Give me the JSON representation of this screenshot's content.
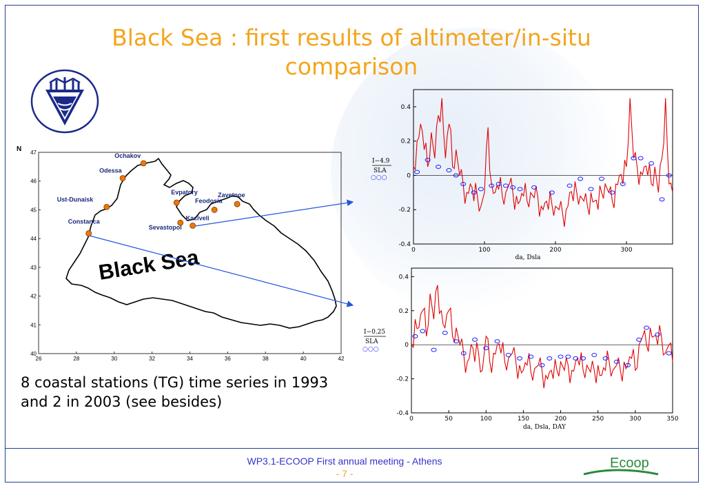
{
  "slide": {
    "title_line1": "Black Sea : first results of altimeter/in-situ",
    "title_line2": "comparison",
    "caption_line1": "8 coastal stations (TG) time series in 1993",
    "caption_line2": "and 2 in 2003 (see besides)",
    "footer_text": "WP3.1-ECOOP First annual meeting  - Athens",
    "page_number": "- 7 -",
    "ecoop_logo": "Ecoop"
  },
  "colors": {
    "title": "#f4a51c",
    "footer": "#3333cc",
    "series": "#e00000",
    "markers": "#1a1aff",
    "station": "#f07800",
    "arrow": "#2255dd"
  },
  "map": {
    "north_label": "N",
    "sea_label": "Black Sea",
    "x_ticks": [
      "26",
      "28",
      "30",
      "32",
      "34",
      "36",
      "38",
      "40",
      "42"
    ],
    "y_ticks": [
      "40",
      "41",
      "42",
      "43",
      "44",
      "45",
      "46",
      "47"
    ],
    "stations": [
      {
        "name": "Ochakov",
        "lon": 31.55,
        "lat": 46.62
      },
      {
        "name": "Odessa",
        "lon": 30.45,
        "lat": 46.1
      },
      {
        "name": "Ust-Dunaisk",
        "lon": 29.6,
        "lat": 45.1
      },
      {
        "name": "Constanca",
        "lon": 28.65,
        "lat": 44.18
      },
      {
        "name": "Evpatory",
        "lon": 33.3,
        "lat": 45.25
      },
      {
        "name": "Sevastopol",
        "lon": 33.5,
        "lat": 44.55
      },
      {
        "name": "Kaciveli",
        "lon": 34.15,
        "lat": 44.45
      },
      {
        "name": "Feodosia",
        "lon": 35.3,
        "lat": 45.0
      },
      {
        "name": "Zavetnoe",
        "lon": 36.5,
        "lat": 45.2
      }
    ]
  },
  "chart_data": [
    {
      "type": "line",
      "ylabel": "I−4.9",
      "ylabel2": "SLA",
      "ylabel3": "○○○",
      "xlabel": "da, Dsla",
      "xlim": [
        0,
        365
      ],
      "ylim": [
        -0.4,
        0.5
      ],
      "x_ticks": [
        0,
        100,
        200,
        300
      ],
      "y_ticks": [
        -0.4,
        -0.2,
        0,
        0.2,
        0.4
      ],
      "series": [
        {
          "style": "line",
          "x": [
            0,
            5,
            10,
            15,
            20,
            25,
            30,
            35,
            40,
            45,
            50,
            55,
            60,
            65,
            70,
            75,
            80,
            85,
            90,
            95,
            100,
            105,
            110,
            115,
            120,
            125,
            130,
            135,
            140,
            145,
            150,
            155,
            160,
            165,
            170,
            175,
            180,
            185,
            190,
            195,
            200,
            205,
            210,
            215,
            220,
            225,
            230,
            235,
            240,
            245,
            250,
            255,
            260,
            265,
            270,
            275,
            280,
            285,
            290,
            295,
            300,
            305,
            310,
            315,
            320,
            325,
            330,
            335,
            340,
            345,
            350,
            355,
            360,
            365
          ],
          "y": [
            0.05,
            0.2,
            0.3,
            0.15,
            0.05,
            0.25,
            0.1,
            0.35,
            0.45,
            0.1,
            0.3,
            0.05,
            0.15,
            0.0,
            -0.05,
            -0.1,
            -0.05,
            -0.15,
            -0.12,
            -0.18,
            -0.1,
            0.28,
            -0.05,
            -0.1,
            -0.08,
            -0.12,
            -0.1,
            -0.05,
            -0.1,
            -0.12,
            -0.15,
            -0.12,
            -0.15,
            -0.1,
            -0.13,
            -0.12,
            -0.18,
            -0.16,
            -0.2,
            -0.17,
            -0.18,
            -0.2,
            -0.22,
            -0.2,
            -0.1,
            -0.15,
            -0.1,
            -0.12,
            -0.15,
            -0.18,
            -0.1,
            -0.15,
            -0.2,
            -0.1,
            -0.05,
            -0.1,
            -0.15,
            -0.05,
            0.0,
            -0.05,
            0.05,
            0.45,
            0.1,
            0.05,
            0.02,
            0.05,
            0.0,
            -0.05,
            0.05,
            -0.1,
            0.1,
            0.45,
            -0.05,
            -0.1
          ]
        },
        {
          "style": "markers",
          "x": [
            5,
            20,
            35,
            50,
            60,
            70,
            85,
            95,
            110,
            120,
            130,
            140,
            150,
            170,
            195,
            220,
            235,
            250,
            265,
            280,
            295,
            310,
            320,
            335,
            350,
            360
          ],
          "y": [
            0.02,
            0.09,
            0.05,
            0.03,
            0.0,
            -0.05,
            -0.1,
            -0.08,
            -0.06,
            -0.05,
            -0.06,
            -0.07,
            -0.08,
            -0.07,
            -0.1,
            -0.06,
            -0.02,
            -0.08,
            -0.02,
            -0.1,
            -0.05,
            0.1,
            0.1,
            0.07,
            -0.14,
            0.0
          ]
        }
      ]
    },
    {
      "type": "line",
      "ylabel": "I−0.25",
      "ylabel2": "SLA",
      "ylabel3": "○○○",
      "xlabel": "da, Dsla, DAY",
      "xlim": [
        0,
        350
      ],
      "ylim": [
        -0.4,
        0.45
      ],
      "x_ticks": [
        0,
        50,
        100,
        150,
        200,
        250,
        300,
        350
      ],
      "y_ticks": [
        -0.4,
        -0.2,
        0,
        0.2,
        0.4
      ],
      "series": [
        {
          "style": "line",
          "x": [
            0,
            5,
            10,
            15,
            20,
            25,
            30,
            35,
            40,
            45,
            50,
            55,
            60,
            65,
            70,
            75,
            80,
            85,
            90,
            95,
            100,
            105,
            110,
            115,
            120,
            125,
            130,
            135,
            140,
            145,
            150,
            155,
            160,
            165,
            170,
            175,
            180,
            185,
            190,
            195,
            200,
            205,
            210,
            215,
            220,
            225,
            230,
            235,
            240,
            245,
            250,
            255,
            260,
            265,
            270,
            275,
            280,
            285,
            290,
            295,
            300,
            305,
            310,
            315,
            320,
            325,
            330,
            335,
            340,
            345,
            350
          ],
          "y": [
            0.0,
            0.15,
            0.1,
            0.2,
            0.05,
            0.3,
            0.15,
            0.35,
            0.2,
            0.1,
            0.2,
            0.05,
            0.1,
            0.0,
            -0.05,
            -0.1,
            0.0,
            -0.1,
            -0.05,
            -0.15,
            0.05,
            -0.1,
            -0.05,
            0.0,
            -0.05,
            -0.1,
            -0.08,
            -0.05,
            -0.1,
            -0.12,
            -0.15,
            -0.12,
            -0.16,
            -0.14,
            -0.12,
            -0.15,
            -0.18,
            -0.16,
            -0.2,
            -0.15,
            -0.1,
            -0.15,
            -0.12,
            -0.15,
            -0.1,
            -0.12,
            -0.15,
            -0.12,
            -0.16,
            -0.15,
            -0.12,
            -0.18,
            -0.15,
            -0.1,
            -0.15,
            -0.12,
            -0.15,
            -0.1,
            -0.12,
            -0.08,
            -0.15,
            0.0,
            0.05,
            0.0,
            0.1,
            0.05,
            0.0,
            0.05,
            -0.05,
            0.0,
            -0.1
          ]
        },
        {
          "style": "markers",
          "x": [
            5,
            15,
            30,
            45,
            60,
            70,
            85,
            100,
            115,
            130,
            145,
            160,
            175,
            185,
            200,
            210,
            220,
            230,
            245,
            260,
            275,
            290,
            305,
            315,
            330,
            345
          ],
          "y": [
            0.05,
            0.08,
            -0.03,
            0.07,
            0.02,
            -0.05,
            0.03,
            -0.02,
            0.02,
            -0.06,
            -0.08,
            -0.07,
            -0.12,
            -0.08,
            -0.07,
            -0.07,
            -0.08,
            -0.08,
            -0.06,
            -0.08,
            -0.1,
            -0.12,
            0.03,
            0.1,
            0.06,
            -0.05
          ]
        }
      ]
    }
  ]
}
